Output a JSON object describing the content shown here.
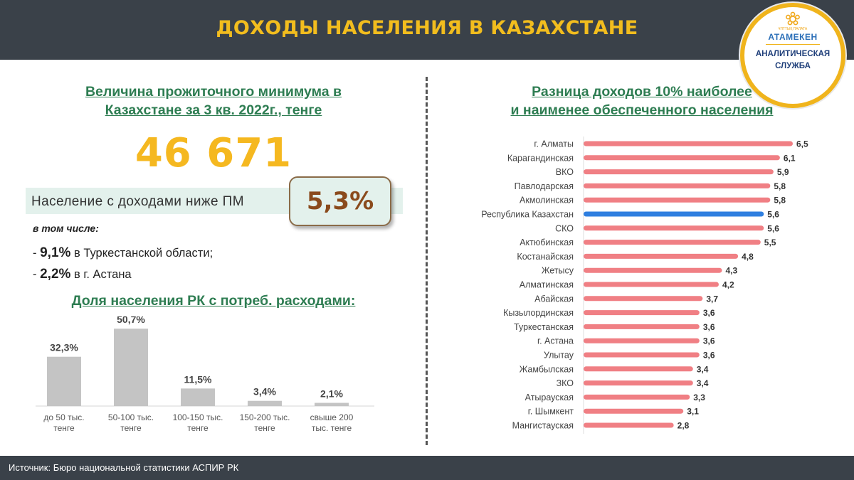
{
  "header": {
    "title": "ДОХОДЫ НАСЕЛЕНИЯ В КАЗАХСТАНЕ"
  },
  "logo": {
    "small_text": "ҰЛТТЫҚ ПАЛАТА",
    "brand": "АТАМЕКЕН",
    "line1": "АНАЛИТИЧЕСКАЯ",
    "line2": "СЛУЖБА",
    "accent_color": "#f0b41c",
    "icon": "atameken-emblem-icon"
  },
  "left_panel": {
    "title_line1": "Величина прожиточного минимума в",
    "title_line2": "Казахстане за 3 кв. 2022г., тенге",
    "subsistence_minimum": "46 671",
    "below_pm_label": "Население с доходами ниже ПМ",
    "below_pm_value": "5,3%",
    "including_label": "в том числе:",
    "items": [
      {
        "prefix": "- ",
        "value": "9,1%",
        "text": " в Туркестанской области;"
      },
      {
        "prefix": "- ",
        "value": "2,2%",
        "text": " в г. Астана"
      }
    ],
    "spending_title": "Доля населения РК с потреб. расходами:"
  },
  "right_panel": {
    "title_line1": "Разница доходов 10% наиболее",
    "title_line2": "и наименее обеспеченного населения"
  },
  "chart_data": [
    {
      "type": "bar",
      "categories": [
        [
          "до 50 тыс.",
          "тенге"
        ],
        [
          "50-100 тыс.",
          "тенге"
        ],
        [
          "100-150 тыс.",
          "тенге"
        ],
        [
          "150-200 тыс.",
          "тенге"
        ],
        [
          "свыше 200",
          "тыс. тенге"
        ]
      ],
      "values": [
        32.3,
        50.7,
        11.5,
        3.4,
        2.1
      ],
      "value_labels": [
        "32,3%",
        "50,7%",
        "11,5%",
        "3,4%",
        "2,1%"
      ],
      "bar_color": "#c4c4c4",
      "ylim": [
        0,
        55
      ],
      "title": "",
      "xlabel": "",
      "ylabel": ""
    },
    {
      "type": "bar",
      "orientation": "horizontal",
      "categories": [
        "г. Алматы",
        "Карагандинская",
        "ВКО",
        "Павлодарская",
        "Акмолинская",
        "Республика Казахстан",
        "СКО",
        "Актюбинская",
        "Костанайская",
        "Жетысу",
        "Алматинская",
        "Абайская",
        "Кызылординская",
        "Туркестанская",
        "г. Астана",
        "Улытау",
        "Жамбылская",
        "ЗКО",
        "Атырауская",
        "г. Шымкент",
        "Мангистауская"
      ],
      "values": [
        6.5,
        6.1,
        5.9,
        5.8,
        5.8,
        5.6,
        5.6,
        5.5,
        4.8,
        4.3,
        4.2,
        3.7,
        3.6,
        3.6,
        3.6,
        3.6,
        3.4,
        3.4,
        3.3,
        3.1,
        2.8
      ],
      "value_labels": [
        "6,5",
        "6,1",
        "5,9",
        "5,8",
        "5,8",
        "5,6",
        "5,6",
        "5,5",
        "4,8",
        "4,3",
        "4,2",
        "3,7",
        "3,6",
        "3,6",
        "3,6",
        "3,6",
        "3,4",
        "3,4",
        "3,3",
        "3,1",
        "2,8"
      ],
      "bar_color": "#f07f84",
      "highlight_color": "#2f7fe0",
      "highlight_category": "Республика Казахстан",
      "xlim": [
        0,
        6.5
      ],
      "title": "",
      "xlabel": "",
      "ylabel": ""
    }
  ],
  "footer": {
    "source": "Источник: Бюро национальной  статистики  АСПИР РК"
  }
}
